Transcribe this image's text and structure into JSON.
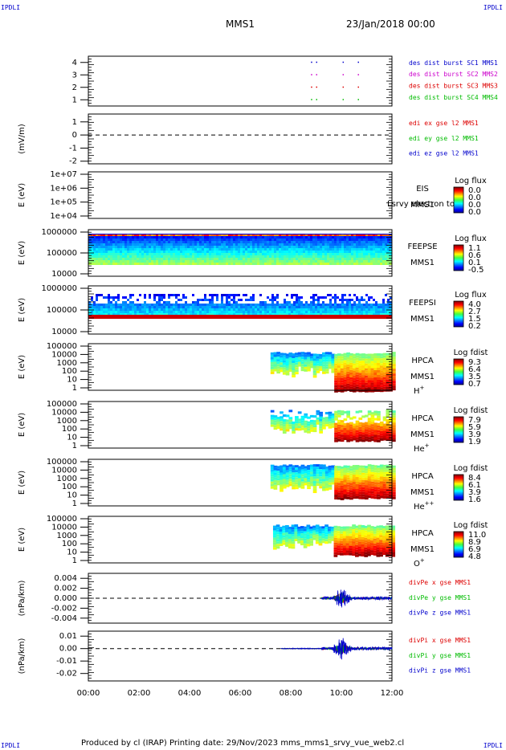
{
  "header": {
    "corner_tl": "IPDLI",
    "corner_tr": "IPDLI",
    "corner_bl": "IPDLI",
    "corner_br": "IPDLI",
    "mission": "MMS1",
    "date": "23/Jan/2018 00:00"
  },
  "footer": {
    "text": "Produced by cl (IRAP)   Printing date: 29/Nov/2023   mms_mms1_srvy_vue_web2.cl"
  },
  "colors": {
    "mms1": "#0000cc",
    "mms2": "#cc00cc",
    "mms3": "#dd0000",
    "mms4": "#00bb00",
    "x": "#dd0000",
    "y": "#00bb00",
    "z": "#0000cc"
  },
  "chart_data": [
    {
      "id": "burst",
      "type": "scatter",
      "ylim": [
        0.5,
        4.5
      ],
      "yticks": [
        "1",
        "2",
        "3",
        "4"
      ],
      "ytick_values": [
        1,
        2,
        3,
        4
      ],
      "legend": [
        {
          "text": "des dist burst SC1 MMS1",
          "color": "#0000cc"
        },
        {
          "text": "des dist burst SC2 MMS2",
          "color": "#cc00cc"
        },
        {
          "text": "des dist burst SC3 MMS3",
          "color": "#dd0000"
        },
        {
          "text": "des dist burst SC4 MMS4",
          "color": "#00bb00"
        }
      ],
      "burst_times_h": [
        8.8,
        9.0,
        10.05,
        10.65
      ]
    },
    {
      "id": "edi",
      "type": "line",
      "ylabel": "(mV/m)",
      "ylim": [
        -2.2,
        1.6
      ],
      "yticks": [
        "1",
        "0",
        "-1",
        "-2"
      ],
      "ytick_values": [
        1,
        0,
        -1,
        -2
      ],
      "legend": [
        {
          "text": "edi ex gse l2 MMS1",
          "color": "#dd0000"
        },
        {
          "text": "edi ey gse l2 MMS1",
          "color": "#00bb00"
        },
        {
          "text": "edi ez gse l2 MMS1",
          "color": "#0000cc"
        }
      ]
    },
    {
      "id": "eis",
      "type": "heatmap",
      "ylabel": "E (eV)",
      "yticks": [
        "1e+07",
        "1e+06",
        "1e+05",
        "1e+04"
      ],
      "right_labels": [
        "EIS",
        "MMS1"
      ],
      "overlay_text": "Lsrvy electron to",
      "colorbar_title": "Log flux",
      "colorbar_values": [
        "0.0",
        "0.0",
        "0.0",
        "0.0"
      ]
    },
    {
      "id": "feepse",
      "type": "heatmap",
      "ylabel": "E (eV)",
      "yticks": [
        "1000000",
        "100000",
        "10000"
      ],
      "right_labels": [
        "FEEPSE",
        "MMS1"
      ],
      "colorbar_title": "Log flux",
      "colorbar_values": [
        "1.1",
        "0.6",
        "0.1",
        "-0.5"
      ]
    },
    {
      "id": "feepsi",
      "type": "heatmap",
      "ylabel": "E (eV)",
      "yticks": [
        "1000000",
        "100000",
        "10000"
      ],
      "right_labels": [
        "FEEPSI",
        "MMS1"
      ],
      "colorbar_title": "Log flux",
      "colorbar_values": [
        "4.0",
        "2.7",
        "1.5",
        "0.2"
      ]
    },
    {
      "id": "hpca_h",
      "type": "heatmap",
      "ylabel": "E (eV)",
      "yticks": [
        "100000",
        "10000",
        "1000",
        "100",
        "10",
        "1"
      ],
      "right_labels": [
        "HPCA",
        "MMS1"
      ],
      "species": "H",
      "species_sup": "+",
      "colorbar_title": "Log fdist",
      "colorbar_values": [
        "9.3",
        "6.4",
        "3.5",
        "0.7"
      ]
    },
    {
      "id": "hpca_he",
      "type": "heatmap",
      "ylabel": "E (eV)",
      "yticks": [
        "100000",
        "10000",
        "1000",
        "100",
        "10",
        "1"
      ],
      "right_labels": [
        "HPCA",
        "MMS1"
      ],
      "species": "He",
      "species_sup": "+",
      "colorbar_title": "Log fdist",
      "colorbar_values": [
        "7.9",
        "5.9",
        "3.9",
        "1.9"
      ]
    },
    {
      "id": "hpca_hepp",
      "type": "heatmap",
      "ylabel": "E (eV)",
      "yticks": [
        "100000",
        "10000",
        "1000",
        "100",
        "10",
        "1"
      ],
      "right_labels": [
        "HPCA",
        "MMS1"
      ],
      "species": "He",
      "species_sup": "++",
      "colorbar_title": "Log fdist",
      "colorbar_values": [
        "8.4",
        "6.1",
        "3.9",
        "1.6"
      ]
    },
    {
      "id": "hpca_o",
      "type": "heatmap",
      "ylabel": "E (eV)",
      "yticks": [
        "100000",
        "10000",
        "1000",
        "100",
        "10",
        "1"
      ],
      "right_labels": [
        "HPCA",
        "MMS1"
      ],
      "species": "O",
      "species_sup": "+",
      "colorbar_title": "Log fdist",
      "colorbar_values": [
        "11.0",
        "8.9",
        "6.9",
        "4.8"
      ]
    },
    {
      "id": "divpe",
      "type": "line",
      "ylabel": "(nPa/km)",
      "ylim": [
        -0.005,
        0.005
      ],
      "yticks": [
        "0.004",
        "0.002",
        "0.000",
        "-0.002",
        "-0.004"
      ],
      "ytick_values": [
        0.004,
        0.002,
        0.0,
        -0.002,
        -0.004
      ],
      "legend": [
        {
          "text": "divPe x gse MMS1",
          "color": "#dd0000"
        },
        {
          "text": "divPe y gse MMS1",
          "color": "#00bb00"
        },
        {
          "text": "divPe z gse MMS1",
          "color": "#0000cc"
        }
      ]
    },
    {
      "id": "divpi",
      "type": "line",
      "ylabel": "(nPa/km)",
      "ylim": [
        -0.026,
        0.014
      ],
      "yticks": [
        "0.01",
        "0.00",
        "-0.01",
        "-0.02"
      ],
      "ytick_values": [
        0.01,
        0.0,
        -0.01,
        -0.02
      ],
      "legend": [
        {
          "text": "divPi x gse MMS1",
          "color": "#dd0000"
        },
        {
          "text": "divPi y gse MMS1",
          "color": "#00bb00"
        },
        {
          "text": "divPi z gse MMS1",
          "color": "#0000cc"
        }
      ]
    }
  ],
  "time_axis": {
    "xlim_h": [
      0,
      12
    ],
    "ticks": [
      "00:00",
      "02:00",
      "04:00",
      "06:00",
      "08:00",
      "10:00",
      "12:00"
    ]
  }
}
